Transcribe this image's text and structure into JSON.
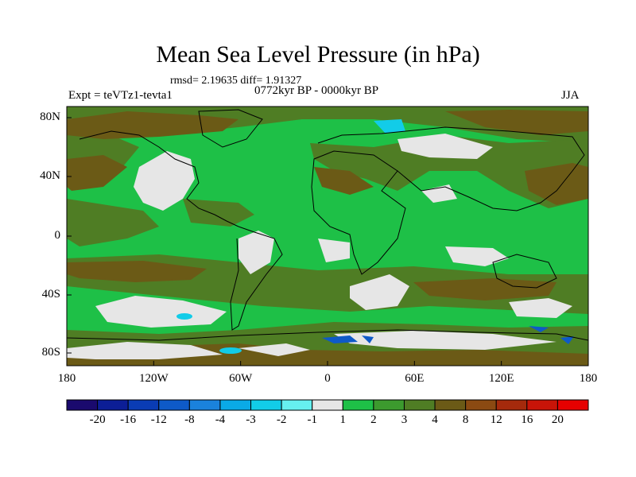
{
  "header": {
    "title": "Mean Sea Level Pressure (in hPa)",
    "stats": "rmsd= 2.19635 diff= 1.91327",
    "period": "0772kyr BP - 0000kyr BP",
    "experiment": "Expt = teVTz1-tevta1",
    "season": "JJA"
  },
  "axes": {
    "lat_labels": [
      "80N",
      "40N",
      "0",
      "40S",
      "80S"
    ],
    "lon_labels": [
      "180",
      "120W",
      "60W",
      "0",
      "60E",
      "120E",
      "180"
    ]
  },
  "colorbar": {
    "labels": [
      "-20",
      "-16",
      "-12",
      "-8",
      "-4",
      "-3",
      "-2",
      "-1",
      "1",
      "2",
      "3",
      "4",
      "8",
      "12",
      "16",
      "20"
    ],
    "colors": [
      "#1a0a6e",
      "#0c1e96",
      "#0a3cb4",
      "#0e5ac8",
      "#1a82dc",
      "#0aaae6",
      "#12cce8",
      "#66f0f0",
      "#e6e6e6",
      "#1ec047",
      "#3c9a2e",
      "#4f7d24",
      "#6b5a16",
      "#8b4a12",
      "#a52a0c",
      "#c81408",
      "#e60000"
    ]
  },
  "palette": {
    "background": "#ffffff",
    "grey_band": "#e6e6e6",
    "green_band": "#1ec047",
    "olive_band": "#4f7d24",
    "brown_band": "#6b5a16",
    "cyan_band": "#12cce8",
    "blue_band": "#0e5ac8"
  }
}
